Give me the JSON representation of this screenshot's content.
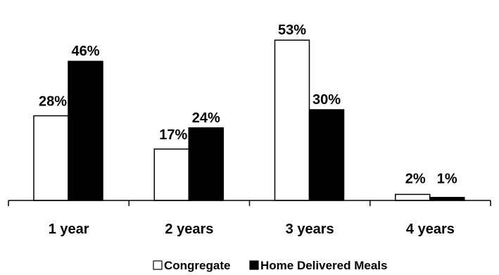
{
  "chart_data": {
    "type": "bar",
    "title": "",
    "xlabel": "",
    "ylabel": "",
    "ylim": [
      0,
      58
    ],
    "grid": false,
    "legend_position": "bottom",
    "categories": [
      "1 year",
      "2 years",
      "3 years",
      "4 years"
    ],
    "series": [
      {
        "name": "Congregate",
        "values": [
          28,
          17,
          53,
          2
        ],
        "labels": [
          "28%",
          "17%",
          "53%",
          "2%"
        ],
        "color": "#ffffff",
        "stroke": "#000000"
      },
      {
        "name": "Home Delivered Meals",
        "values": [
          46,
          24,
          30,
          1
        ],
        "labels": [
          "46%",
          "24%",
          "30%",
          "1%"
        ],
        "color": "#000000",
        "stroke": "#000000"
      }
    ]
  }
}
